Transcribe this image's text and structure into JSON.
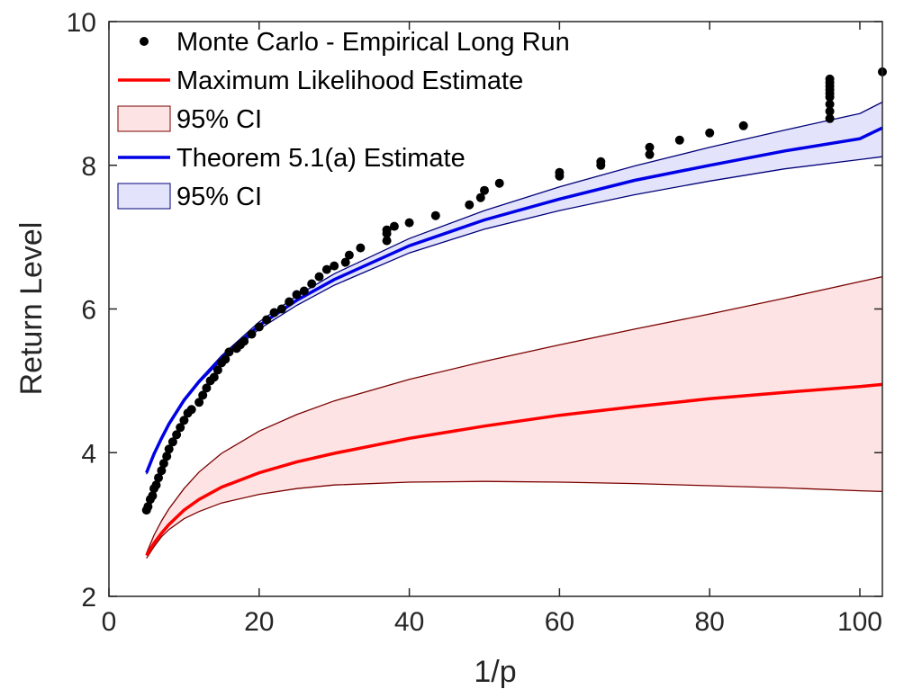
{
  "chart_data": {
    "type": "line",
    "title": "",
    "xlabel": "1/p",
    "ylabel": "Return Level",
    "xlim": [
      0,
      103
    ],
    "ylim": [
      2,
      10
    ],
    "xticks": [
      0,
      20,
      40,
      60,
      80,
      100
    ],
    "yticks": [
      2,
      4,
      6,
      8,
      10
    ],
    "xtick_labels": [
      "0",
      "20",
      "40",
      "60",
      "80",
      "100"
    ],
    "ytick_labels": [
      "2",
      "4",
      "6",
      "8",
      "10"
    ],
    "grid": false,
    "legend_position": "top-left",
    "colors": {
      "mle": "#ff0000",
      "mle_band_fill": "#fde3e3",
      "mle_band_edge": "#7a0000",
      "thm": "#0000e6",
      "thm_band_fill": "#e3e3fb",
      "thm_band_edge": "#00007a",
      "points": "#000000"
    },
    "legend": [
      {
        "label": "Monte Carlo - Empirical Long Run",
        "kind": "marker",
        "series": "points"
      },
      {
        "label": "Maximum Likelihood Estimate",
        "kind": "line",
        "series": "mle"
      },
      {
        "label": "95% CI",
        "kind": "patch",
        "series": "mle_band"
      },
      {
        "label": "Theorem 5.1(a) Estimate",
        "kind": "line",
        "series": "thm"
      },
      {
        "label": "95% CI",
        "kind": "patch",
        "series": "thm_band"
      }
    ],
    "series": [
      {
        "name": "Maximum Likelihood Estimate",
        "key": "mle",
        "x": [
          5,
          6,
          7,
          8,
          10,
          12,
          15,
          20,
          25,
          30,
          40,
          50,
          60,
          70,
          80,
          90,
          100,
          103
        ],
        "y": [
          2.57,
          2.74,
          2.88,
          3.0,
          3.2,
          3.35,
          3.52,
          3.72,
          3.87,
          3.99,
          4.2,
          4.37,
          4.52,
          4.64,
          4.75,
          4.84,
          4.92,
          4.95
        ]
      },
      {
        "name": "95% CI upper (MLE)",
        "key": "mle_upper",
        "x": [
          5,
          6,
          7,
          8,
          10,
          12,
          15,
          20,
          25,
          30,
          40,
          50,
          60,
          70,
          80,
          90,
          100,
          103
        ],
        "y": [
          2.6,
          2.85,
          3.05,
          3.22,
          3.5,
          3.73,
          3.99,
          4.3,
          4.53,
          4.72,
          5.02,
          5.27,
          5.5,
          5.72,
          5.93,
          6.15,
          6.38,
          6.45
        ]
      },
      {
        "name": "95% CI lower (MLE)",
        "key": "mle_lower",
        "x": [
          5,
          6,
          7,
          8,
          10,
          12,
          15,
          20,
          25,
          30,
          40,
          50,
          60,
          70,
          80,
          90,
          100,
          103
        ],
        "y": [
          2.53,
          2.69,
          2.83,
          2.93,
          3.08,
          3.18,
          3.3,
          3.42,
          3.5,
          3.55,
          3.59,
          3.6,
          3.59,
          3.57,
          3.54,
          3.51,
          3.47,
          3.46
        ]
      },
      {
        "name": "Theorem 5.1(a) Estimate",
        "key": "thm",
        "x": [
          5,
          6,
          7,
          8,
          10,
          12,
          15,
          20,
          25,
          30,
          40,
          50,
          60,
          70,
          80,
          90,
          100,
          103
        ],
        "y": [
          3.72,
          3.98,
          4.2,
          4.4,
          4.73,
          4.99,
          5.32,
          5.77,
          6.12,
          6.41,
          6.88,
          7.24,
          7.53,
          7.79,
          8.0,
          8.2,
          8.37,
          8.52
        ]
      },
      {
        "name": "95% CI upper (Theorem)",
        "key": "thm_upper",
        "x": [
          5,
          6,
          7,
          8,
          10,
          12,
          15,
          20,
          25,
          30,
          40,
          50,
          60,
          70,
          80,
          90,
          100,
          103
        ],
        "y": [
          3.74,
          4.0,
          4.22,
          4.42,
          4.75,
          5.01,
          5.35,
          5.82,
          6.18,
          6.49,
          6.98,
          7.37,
          7.7,
          7.99,
          8.25,
          8.49,
          8.72,
          8.88
        ]
      },
      {
        "name": "95% CI lower (Theorem)",
        "key": "thm_lower",
        "x": [
          5,
          6,
          7,
          8,
          10,
          12,
          15,
          20,
          25,
          30,
          40,
          50,
          60,
          70,
          80,
          90,
          100,
          103
        ],
        "y": [
          3.7,
          3.96,
          4.18,
          4.38,
          4.71,
          4.97,
          5.29,
          5.72,
          6.05,
          6.33,
          6.78,
          7.11,
          7.37,
          7.59,
          7.78,
          7.95,
          8.08,
          8.12
        ]
      },
      {
        "name": "Monte Carlo - Empirical Long Run",
        "key": "points",
        "x": [
          5,
          5.2,
          5.5,
          5.8,
          6.0,
          6.3,
          6.6,
          7.0,
          7.3,
          7.7,
          8.0,
          8.5,
          9.0,
          9.5,
          10,
          10.5,
          11,
          12,
          12.5,
          13,
          13.5,
          14,
          14.5,
          15,
          15.5,
          16,
          17,
          17.5,
          18,
          19,
          20,
          21,
          22,
          23,
          24,
          25,
          26,
          27,
          28,
          29,
          30,
          31.5,
          32,
          33.5,
          37,
          37,
          37,
          38,
          40,
          43.5,
          48,
          49.5,
          50,
          52,
          60,
          60,
          65.5,
          65.5,
          72,
          72,
          76,
          80,
          84.5,
          96,
          96,
          96,
          96,
          96,
          96,
          96,
          96,
          96,
          103
        ],
        "y": [
          3.2,
          3.25,
          3.35,
          3.4,
          3.5,
          3.55,
          3.65,
          3.75,
          3.85,
          3.95,
          4.05,
          4.15,
          4.25,
          4.35,
          4.45,
          4.55,
          4.6,
          4.7,
          4.8,
          4.9,
          5.0,
          5.05,
          5.15,
          5.25,
          5.3,
          5.4,
          5.45,
          5.5,
          5.55,
          5.65,
          5.75,
          5.85,
          5.95,
          6.0,
          6.1,
          6.2,
          6.25,
          6.35,
          6.45,
          6.55,
          6.6,
          6.65,
          6.75,
          6.85,
          6.95,
          7.05,
          7.1,
          7.15,
          7.2,
          7.3,
          7.45,
          7.55,
          7.65,
          7.75,
          7.85,
          7.9,
          8.0,
          8.05,
          8.15,
          8.25,
          8.35,
          8.45,
          8.55,
          8.65,
          8.75,
          8.85,
          8.95,
          9.0,
          9.05,
          9.1,
          9.15,
          9.2,
          9.3
        ]
      }
    ]
  }
}
